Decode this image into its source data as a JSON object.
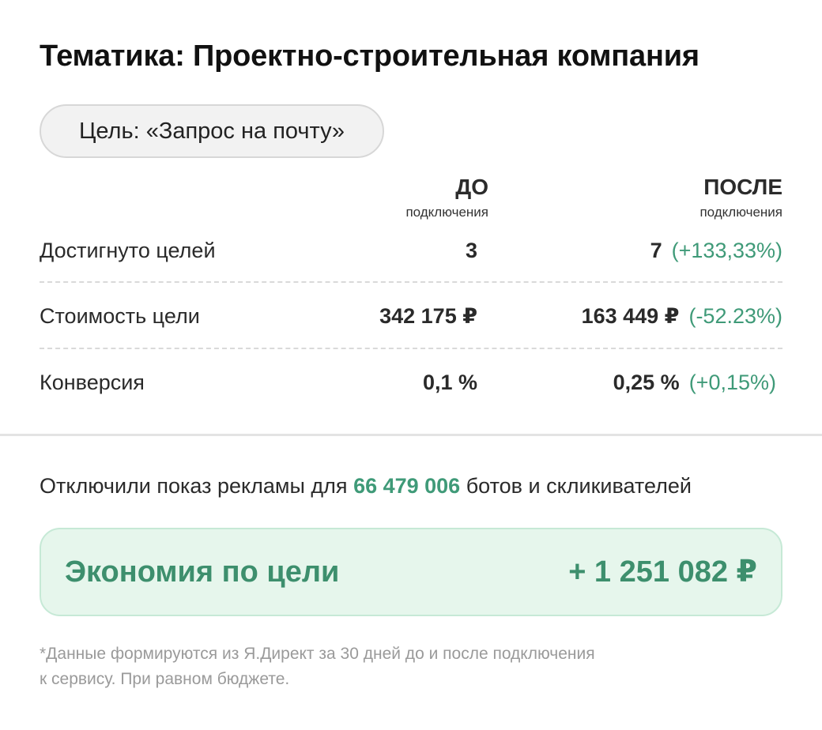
{
  "title": "Тематика: Проектно-строительная компания",
  "goal": "Цель: «Запрос на почту»",
  "columns": {
    "before": {
      "title": "ДО",
      "subtitle": "подключения"
    },
    "after": {
      "title": "ПОСЛЕ",
      "subtitle": "подключения"
    }
  },
  "rows": [
    {
      "label": "Достигнуто целей",
      "before": "3",
      "after": "7",
      "delta": "(+133,33%)"
    },
    {
      "label": "Стоимость цели",
      "before": "342 175 ₽",
      "after": "163 449 ₽",
      "delta": "(-52.23%)"
    },
    {
      "label": "Конверсия",
      "before": "0,1 %",
      "after": "0,25 %",
      "delta": "(+0,15%)"
    }
  ],
  "bots": {
    "prefix": "Отключили показ рекламы для",
    "count": "66 479 006",
    "suffix": "ботов и скликивателей"
  },
  "savings": {
    "label": "Экономия по цели",
    "value": "+ 1 251 082 ₽"
  },
  "footnote": {
    "line1": "*Данные формируются из Я.Директ за 30 дней до и после подключения",
    "line2": "к сервису. При равном бюджете."
  },
  "colors": {
    "accent_green": "#3f9a78",
    "savings_bg": "#e6f6ec",
    "savings_border": "#c6e9d6"
  }
}
